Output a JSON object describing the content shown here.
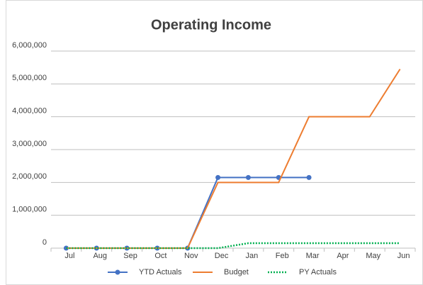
{
  "chart_data": {
    "type": "line",
    "title": "Operating Income",
    "categories": [
      "Jul",
      "Aug",
      "Sep",
      "Oct",
      "Nov",
      "Dec",
      "Jan",
      "Feb",
      "Mar",
      "Apr",
      "May",
      "Jun"
    ],
    "series": [
      {
        "name": "YTD Actuals",
        "color": "#4472c4",
        "marker": true,
        "style": "solid",
        "values": [
          0,
          0,
          0,
          0,
          0,
          2150000,
          2150000,
          2150000,
          2150000,
          null,
          null,
          null
        ]
      },
      {
        "name": "Budget",
        "color": "#ed7d31",
        "marker": false,
        "style": "solid",
        "values": [
          0,
          0,
          0,
          0,
          0,
          2000000,
          2000000,
          2000000,
          4000000,
          4000000,
          4000000,
          5450000
        ]
      },
      {
        "name": "PY Actuals",
        "color": "#00b050",
        "marker": false,
        "style": "dotted",
        "values": [
          0,
          0,
          0,
          0,
          0,
          0,
          150000,
          150000,
          150000,
          150000,
          150000,
          150000
        ]
      }
    ],
    "ylim": [
      0,
      6000000
    ],
    "yticks": [
      0,
      {
        "value": 1000000,
        "label": "1,000,000"
      },
      {
        "value": 2000000,
        "label": "2,000,000"
      },
      {
        "value": 3000000,
        "label": "3,000,000"
      },
      {
        "value": 4000000,
        "label": "4,000,000"
      },
      {
        "value": 5000000,
        "label": "5,000,000"
      },
      {
        "value": 6000000,
        "label": "6,000,000"
      }
    ],
    "grid": true,
    "legend": "bottom"
  }
}
